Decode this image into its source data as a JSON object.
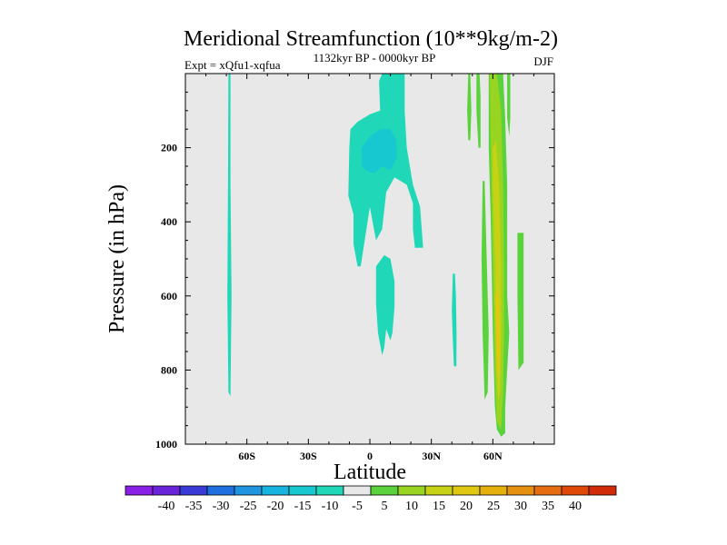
{
  "chart_data": {
    "type": "heatmap",
    "title": "Meridional Streamfunction (10**9kg/m-2)",
    "subtitle_left": "Expt = xQfu1-xqfua",
    "subtitle_center": "1132kyr BP - 0000kyr BP",
    "subtitle_right": "DJF",
    "xlabel": "Latitude",
    "ylabel": "Pressure (in hPa)",
    "xlim": [
      -90,
      90
    ],
    "ylim": [
      0,
      1000
    ],
    "y_inverted": true,
    "x_ticks": [
      {
        "value": -60,
        "label": "60S"
      },
      {
        "value": -30,
        "label": "30S"
      },
      {
        "value": 0,
        "label": "0"
      },
      {
        "value": 30,
        "label": "30N"
      },
      {
        "value": 60,
        "label": "60N"
      }
    ],
    "y_ticks": [
      {
        "value": 200,
        "label": "200"
      },
      {
        "value": 400,
        "label": "400"
      },
      {
        "value": 600,
        "label": "600"
      },
      {
        "value": 800,
        "label": "800"
      },
      {
        "value": 1000,
        "label": "1000"
      }
    ],
    "background_color": "#e8e8e8",
    "colorbar": {
      "colors": [
        "#8a1fe6",
        "#6a23d9",
        "#3a3ad6",
        "#1f6fe0",
        "#1f95e0",
        "#18b4e0",
        "#18c8d0",
        "#20d8b8",
        "#e8e8e8",
        "#5ad23c",
        "#98d420",
        "#c8d214",
        "#e0c810",
        "#e6b00c",
        "#e69010",
        "#e66e10",
        "#e04808",
        "#d02a08"
      ],
      "labels": [
        "-40",
        "-35",
        "-30",
        "-25",
        "-20",
        "-15",
        "-10",
        "-5",
        "5",
        "10",
        "15",
        "20",
        "25",
        "30",
        "35",
        "40"
      ]
    },
    "regions": [
      {
        "name": "cell-60s-negative-5",
        "value": -5,
        "color": "#20d8b8",
        "polygon": [
          [
            -69,
            0
          ],
          [
            -68,
            0
          ],
          [
            -68,
            300
          ],
          [
            -67.5,
            600
          ],
          [
            -68,
            870
          ],
          [
            -69,
            860
          ],
          [
            -69.5,
            600
          ],
          [
            -69.2,
            300
          ]
        ]
      },
      {
        "name": "cell-equator-upper-negative-5",
        "value": -5,
        "color": "#20d8b8",
        "polygon": [
          [
            6,
            0
          ],
          [
            17,
            0
          ],
          [
            17,
            100
          ],
          [
            18,
            200
          ],
          [
            21,
            300
          ],
          [
            24.5,
            360
          ],
          [
            26,
            470
          ],
          [
            22,
            470
          ],
          [
            21,
            420
          ],
          [
            21,
            350
          ],
          [
            18,
            300
          ],
          [
            15,
            290
          ],
          [
            12,
            280
          ],
          [
            8,
            320
          ],
          [
            6,
            420
          ],
          [
            3,
            450
          ],
          [
            0,
            360
          ],
          [
            -4.5,
            520
          ],
          [
            -6,
            520
          ],
          [
            -8,
            460
          ],
          [
            -8,
            380
          ],
          [
            -10.5,
            330
          ],
          [
            -10,
            200
          ],
          [
            -9.5,
            150
          ],
          [
            -6,
            130
          ],
          [
            0,
            110
          ],
          [
            5,
            100
          ],
          [
            4.5,
            20
          ]
        ]
      },
      {
        "name": "cell-equator-upper-negative-10",
        "value": -10,
        "color": "#18c8d0",
        "polygon": [
          [
            -4,
            200
          ],
          [
            0,
            170
          ],
          [
            5,
            150
          ],
          [
            10,
            150
          ],
          [
            13,
            180
          ],
          [
            13,
            230
          ],
          [
            10,
            260
          ],
          [
            6,
            250
          ],
          [
            2,
            270
          ],
          [
            -2,
            260
          ],
          [
            -4,
            250
          ]
        ]
      },
      {
        "name": "cell-equator-lower-negative-5",
        "value": -5,
        "color": "#20d8b8",
        "polygon": [
          [
            3,
            520
          ],
          [
            7,
            490
          ],
          [
            10,
            500
          ],
          [
            12,
            560
          ],
          [
            12,
            630
          ],
          [
            11,
            700
          ],
          [
            10,
            720
          ],
          [
            8,
            690
          ],
          [
            7,
            740
          ],
          [
            6,
            760
          ],
          [
            4,
            700
          ],
          [
            3,
            620
          ]
        ]
      },
      {
        "name": "cell-40n-negative-5",
        "value": -5,
        "color": "#20d8b8",
        "polygon": [
          [
            40.5,
            540
          ],
          [
            41.5,
            540
          ],
          [
            42,
            600
          ],
          [
            42.3,
            700
          ],
          [
            42.2,
            790
          ],
          [
            41,
            790
          ],
          [
            40.5,
            720
          ],
          [
            40,
            640
          ]
        ]
      },
      {
        "name": "cell-50n-positive-5-upper",
        "value": 5,
        "color": "#5ad23c",
        "polygon": [
          [
            48,
            0
          ],
          [
            49,
            0
          ],
          [
            49.5,
            100
          ],
          [
            49,
            180
          ],
          [
            48,
            180
          ],
          [
            47.5,
            100
          ]
        ]
      },
      {
        "name": "cell-55n-positive-5-upper",
        "value": 5,
        "color": "#5ad23c",
        "polygon": [
          [
            52,
            0
          ],
          [
            53.5,
            0
          ],
          [
            54,
            60
          ],
          [
            54,
            200
          ],
          [
            53,
            200
          ],
          [
            52,
            100
          ]
        ]
      },
      {
        "name": "cell-60n-positive-5",
        "value": 5,
        "color": "#5ad23c",
        "polygon": [
          [
            58,
            0
          ],
          [
            63,
            0
          ],
          [
            65,
            0
          ],
          [
            66,
            120
          ],
          [
            67,
            300
          ],
          [
            67,
            600
          ],
          [
            68,
            700
          ],
          [
            67,
            800
          ],
          [
            66,
            900
          ],
          [
            66,
            970
          ],
          [
            64,
            980
          ],
          [
            62,
            960
          ],
          [
            61,
            900
          ],
          [
            60,
            700
          ],
          [
            59,
            400
          ],
          [
            58,
            200
          ]
        ]
      },
      {
        "name": "cell-55n-positive-5-lower",
        "value": 5,
        "color": "#5ad23c",
        "polygon": [
          [
            55,
            290
          ],
          [
            56,
            290
          ],
          [
            57,
            500
          ],
          [
            58,
            700
          ],
          [
            57.5,
            860
          ],
          [
            56,
            880
          ],
          [
            55,
            700
          ],
          [
            54.5,
            500
          ]
        ]
      },
      {
        "name": "cell-60n-positive-10",
        "value": 10,
        "color": "#98d420",
        "polygon": [
          [
            58.5,
            0
          ],
          [
            62,
            0
          ],
          [
            64,
            100
          ],
          [
            65,
            300
          ],
          [
            65.5,
            500
          ],
          [
            65.5,
            700
          ],
          [
            65,
            860
          ],
          [
            64,
            960
          ],
          [
            62,
            940
          ],
          [
            61,
            800
          ],
          [
            60,
            500
          ],
          [
            59,
            200
          ]
        ]
      },
      {
        "name": "cell-60n-positive-15",
        "value": 15,
        "color": "#c8d214",
        "polygon": [
          [
            60,
            200
          ],
          [
            61.5,
            180
          ],
          [
            63,
            300
          ],
          [
            64,
            500
          ],
          [
            64,
            700
          ],
          [
            63.5,
            860
          ],
          [
            62.5,
            880
          ],
          [
            61.5,
            700
          ],
          [
            61,
            500
          ],
          [
            60,
            300
          ]
        ]
      },
      {
        "name": "cell-60n-positive-20",
        "value": 20,
        "color": "#e0c810",
        "polygon": [
          [
            61,
            600
          ],
          [
            62.5,
            580
          ],
          [
            63.5,
            680
          ],
          [
            63.2,
            800
          ],
          [
            62,
            820
          ],
          [
            61.5,
            700
          ]
        ]
      },
      {
        "name": "cell-65n-positive-5-top",
        "value": 5,
        "color": "#5ad23c",
        "polygon": [
          [
            67,
            0
          ],
          [
            68.5,
            0
          ],
          [
            68.5,
            120
          ],
          [
            68,
            170
          ],
          [
            67,
            120
          ]
        ]
      },
      {
        "name": "cell-75n-positive-5",
        "value": 5,
        "color": "#5ad23c",
        "polygon": [
          [
            72,
            430
          ],
          [
            75,
            430
          ],
          [
            75,
            780
          ],
          [
            72.5,
            800
          ],
          [
            72,
            600
          ]
        ]
      }
    ]
  }
}
